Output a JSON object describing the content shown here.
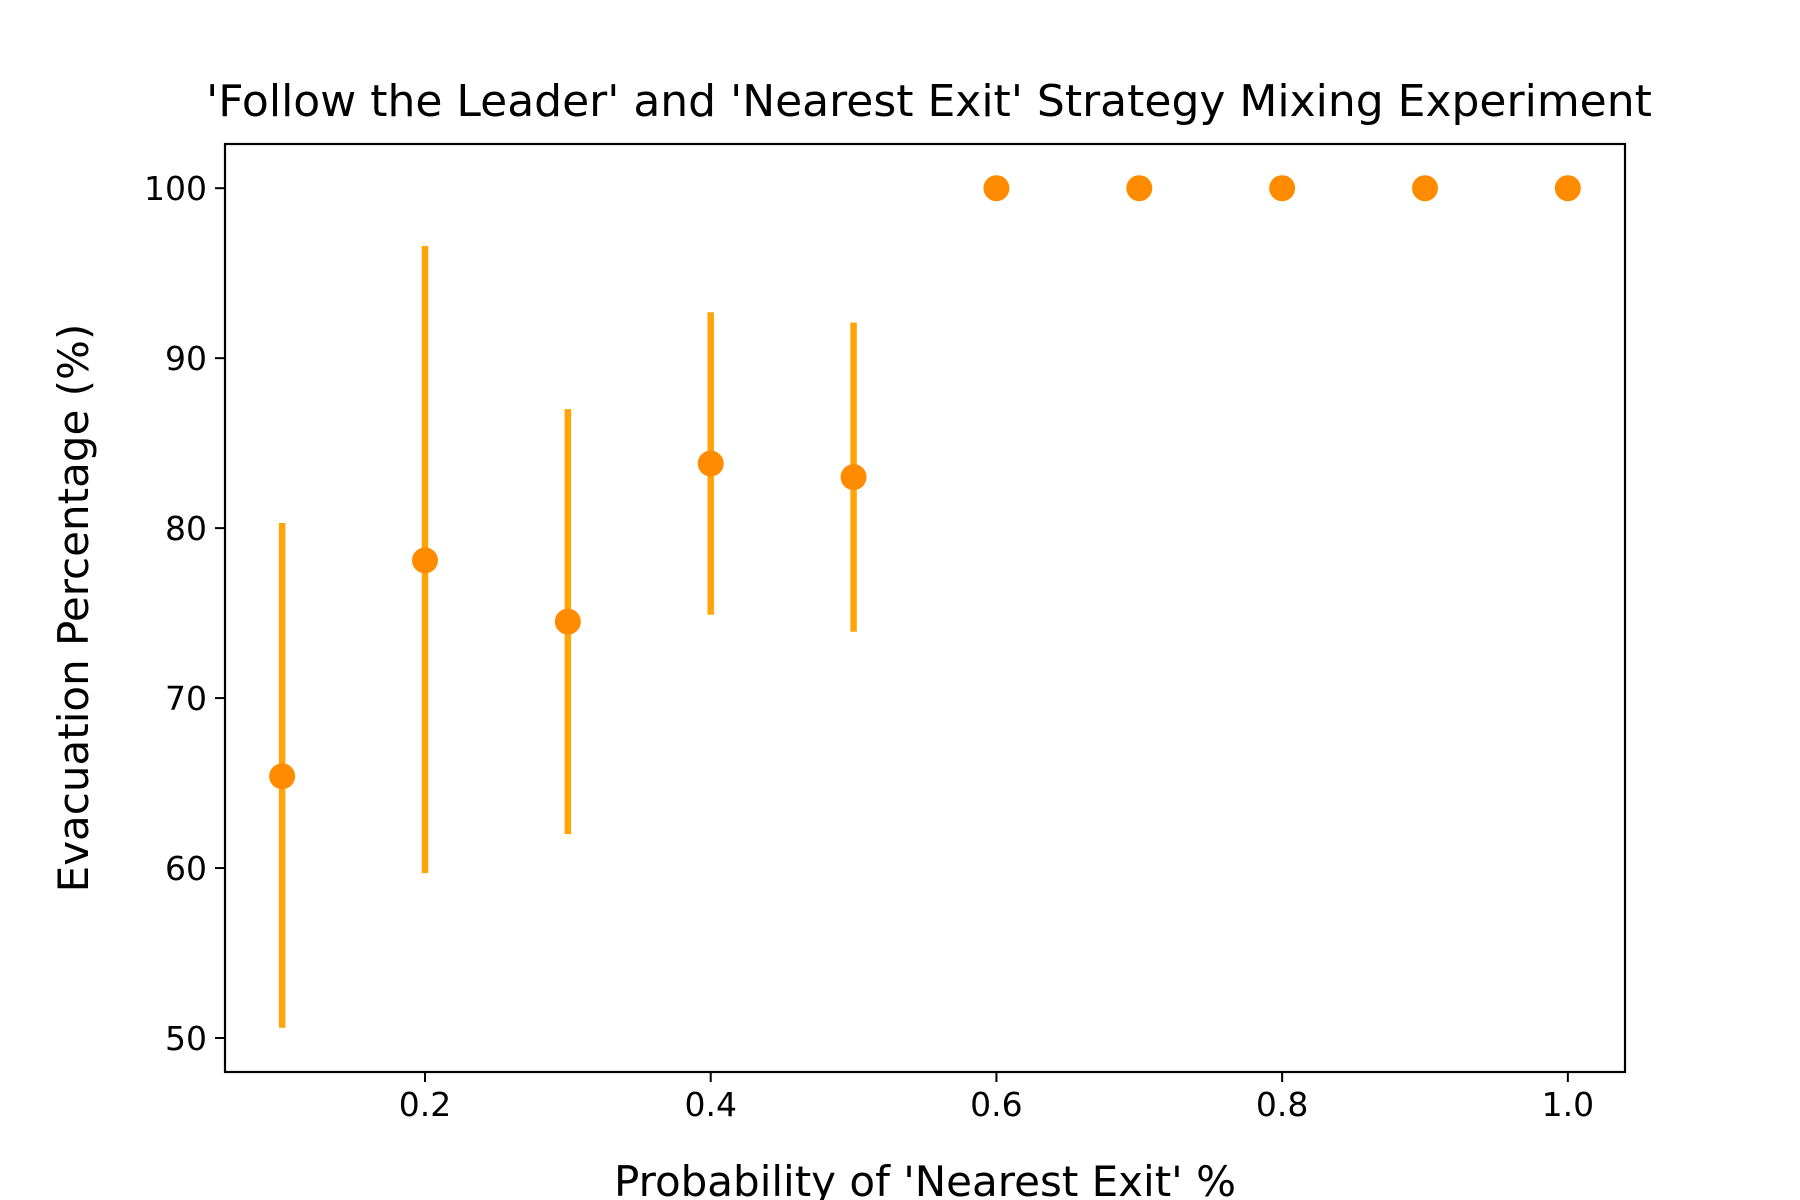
{
  "chart_data": {
    "type": "scatter",
    "title": "'Follow the Leader' and 'Nearest Exit' Strategy Mixing Experiment",
    "xlabel": "Probability of 'Nearest Exit' %",
    "ylabel": "Evacuation Percentage (%)",
    "xlim": [
      0.06,
      1.04
    ],
    "ylim": [
      48.0,
      102.6
    ],
    "xticks": [
      0.2,
      0.4,
      0.6,
      0.8,
      1.0
    ],
    "xtick_labels": [
      "0.2",
      "0.4",
      "0.6",
      "0.8",
      "1.0"
    ],
    "yticks": [
      50,
      60,
      70,
      80,
      90,
      100
    ],
    "ytick_labels": [
      "50",
      "60",
      "70",
      "80",
      "90",
      "100"
    ],
    "grid": false,
    "legend": "none",
    "series": [
      {
        "x": [
          0.1,
          0.2,
          0.3,
          0.4,
          0.5,
          0.6,
          0.7,
          0.8,
          0.9,
          1.0
        ],
        "y": [
          65.4,
          78.1,
          74.5,
          83.8,
          83.0,
          100,
          100,
          100,
          100,
          100
        ],
        "y_low": [
          50.6,
          59.7,
          62.0,
          74.9,
          73.9,
          100,
          100,
          100,
          100,
          100
        ],
        "y_high": [
          80.3,
          96.6,
          87.0,
          92.7,
          92.1,
          100,
          100,
          100,
          100,
          100
        ],
        "marker_color": "#ff8c00",
        "errorbar_color": "#ffa50a"
      }
    ]
  }
}
